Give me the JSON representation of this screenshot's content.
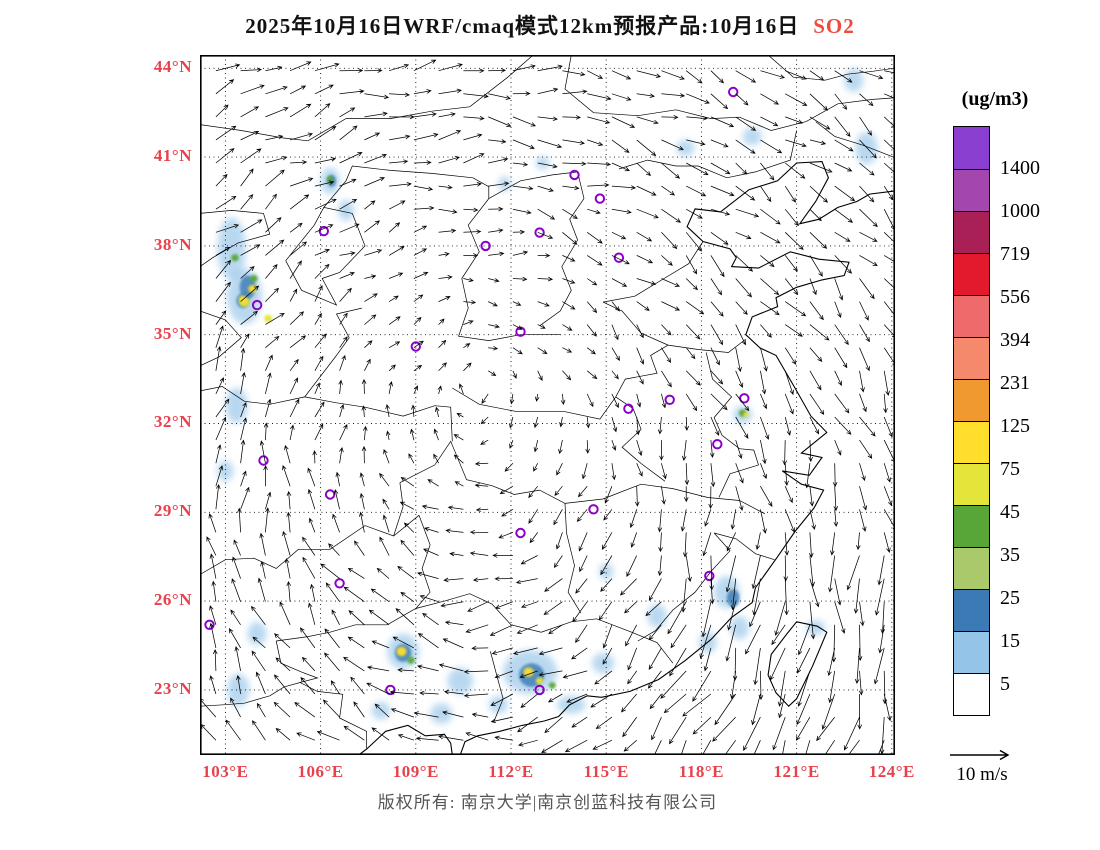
{
  "colors": {
    "axis_red": "#e8414b",
    "so2_red": "#ee4b3e",
    "title_black": "#111111",
    "copyright_gray": "#555555",
    "marker_purple": "#8b00c8",
    "boundary_black": "#000000"
  },
  "title": {
    "prefix": "2025年10月16日WRF/cmaq模式12km预报产品:10月16日",
    "species": "SO2"
  },
  "axes": {
    "lat_tick_labels": [
      "44°N",
      "41°N",
      "38°N",
      "35°N",
      "32°N",
      "29°N",
      "26°N",
      "23°N"
    ],
    "lat_tick_values": [
      44,
      41,
      38,
      35,
      32,
      29,
      26,
      23
    ],
    "lon_tick_labels": [
      "103°E",
      "106°E",
      "109°E",
      "112°E",
      "115°E",
      "118°E",
      "121°E",
      "124°E"
    ],
    "lon_tick_values": [
      103,
      106,
      109,
      112,
      115,
      118,
      121,
      124
    ]
  },
  "legend": {
    "units": "(ug/m3)",
    "boundary_labels": [
      "1400",
      "1000",
      "719",
      "556",
      "394",
      "231",
      "125",
      "75",
      "45",
      "35",
      "25",
      "15",
      "5"
    ],
    "colors_top_to_bottom": [
      "#8a3fd1",
      "#a347af",
      "#a82055",
      "#e31a2d",
      "#ef6a6a",
      "#f4896b",
      "#f0992e",
      "#ffdf2b",
      "#e3e53a",
      "#57a637",
      "#a9c96a",
      "#3b7ab5",
      "#94c4e8",
      "#ffffff"
    ]
  },
  "wind_scale": {
    "label": "10 m/s"
  },
  "footer": {
    "copyright": "版权所有: 南京大学|南京创蓝科技有限公司"
  },
  "chart_data": {
    "type": "heatmap",
    "title": "2025年10月16日WRF/cmaq模式12km预报产品:10月16日 SO2",
    "units": "ug/m3",
    "domain": {
      "lon_range": [
        102.2,
        124.1
      ],
      "lat_range": [
        20.8,
        44.45
      ]
    },
    "level_boundaries": [
      5,
      15,
      25,
      35,
      45,
      75,
      125,
      231,
      394,
      556,
      719,
      1000,
      1400
    ],
    "station_markers_lonlat": [
      [
        119.0,
        43.2
      ],
      [
        114.0,
        40.4
      ],
      [
        114.8,
        39.6
      ],
      [
        106.1,
        38.5
      ],
      [
        111.2,
        38.0
      ],
      [
        112.9,
        38.45
      ],
      [
        115.4,
        37.6
      ],
      [
        104.0,
        36.0
      ],
      [
        109.0,
        34.6
      ],
      [
        112.3,
        35.1
      ],
      [
        115.7,
        32.5
      ],
      [
        117.0,
        32.8
      ],
      [
        119.35,
        32.85
      ],
      [
        118.5,
        31.3
      ],
      [
        104.2,
        30.75
      ],
      [
        106.3,
        29.6
      ],
      [
        114.6,
        29.1
      ],
      [
        112.3,
        28.3
      ],
      [
        106.6,
        26.6
      ],
      [
        118.25,
        26.85
      ],
      [
        102.5,
        25.2
      ],
      [
        108.2,
        23.0
      ],
      [
        112.9,
        23.0
      ]
    ],
    "so2_patches": [
      {
        "lon": 103.6,
        "lat": 36.3,
        "rx": 0.55,
        "ry": 0.95,
        "level": 12
      },
      {
        "lon": 103.2,
        "lat": 37.9,
        "rx": 0.45,
        "ry": 1.05,
        "level": 12
      },
      {
        "lon": 103.35,
        "lat": 32.6,
        "rx": 0.35,
        "ry": 0.6,
        "level": 12
      },
      {
        "lon": 103.0,
        "lat": 30.4,
        "rx": 0.25,
        "ry": 0.35,
        "level": 12
      },
      {
        "lon": 104.0,
        "lat": 24.9,
        "rx": 0.3,
        "ry": 0.4,
        "level": 12
      },
      {
        "lon": 103.4,
        "lat": 23.0,
        "rx": 0.35,
        "ry": 0.55,
        "level": 12
      },
      {
        "lon": 106.3,
        "lat": 40.2,
        "rx": 0.3,
        "ry": 0.45,
        "level": 12
      },
      {
        "lon": 106.8,
        "lat": 39.2,
        "rx": 0.25,
        "ry": 0.35,
        "level": 12
      },
      {
        "lon": 111.8,
        "lat": 40.1,
        "rx": 0.2,
        "ry": 0.25,
        "level": 12
      },
      {
        "lon": 113.0,
        "lat": 40.8,
        "rx": 0.22,
        "ry": 0.22,
        "level": 12
      },
      {
        "lon": 117.5,
        "lat": 41.3,
        "rx": 0.28,
        "ry": 0.28,
        "level": 12
      },
      {
        "lon": 119.6,
        "lat": 41.7,
        "rx": 0.3,
        "ry": 0.3,
        "level": 12
      },
      {
        "lon": 123.2,
        "lat": 41.3,
        "rx": 0.35,
        "ry": 0.55,
        "level": 12
      },
      {
        "lon": 122.8,
        "lat": 43.6,
        "rx": 0.3,
        "ry": 0.4,
        "level": 12
      },
      {
        "lon": 119.3,
        "lat": 32.3,
        "rx": 0.3,
        "ry": 0.3,
        "level": 12
      },
      {
        "lon": 108.6,
        "lat": 24.3,
        "rx": 0.5,
        "ry": 0.6,
        "level": 12
      },
      {
        "lon": 110.4,
        "lat": 23.3,
        "rx": 0.4,
        "ry": 0.45,
        "level": 12
      },
      {
        "lon": 112.6,
        "lat": 23.6,
        "rx": 0.85,
        "ry": 0.75,
        "level": 12
      },
      {
        "lon": 114.9,
        "lat": 23.9,
        "rx": 0.35,
        "ry": 0.35,
        "level": 12
      },
      {
        "lon": 116.6,
        "lat": 25.5,
        "rx": 0.3,
        "ry": 0.4,
        "level": 12
      },
      {
        "lon": 118.8,
        "lat": 26.3,
        "rx": 0.4,
        "ry": 0.55,
        "level": 12
      },
      {
        "lon": 119.2,
        "lat": 25.1,
        "rx": 0.3,
        "ry": 0.4,
        "level": 12
      },
      {
        "lon": 118.2,
        "lat": 24.6,
        "rx": 0.28,
        "ry": 0.35,
        "level": 12
      },
      {
        "lon": 121.6,
        "lat": 25.1,
        "rx": 0.3,
        "ry": 0.25,
        "level": 12
      },
      {
        "lon": 113.9,
        "lat": 22.5,
        "rx": 0.45,
        "ry": 0.3,
        "level": 12
      },
      {
        "lon": 109.8,
        "lat": 22.2,
        "rx": 0.35,
        "ry": 0.35,
        "level": 12
      },
      {
        "lon": 111.6,
        "lat": 22.5,
        "rx": 0.3,
        "ry": 0.3,
        "level": 12
      },
      {
        "lon": 107.9,
        "lat": 22.3,
        "rx": 0.3,
        "ry": 0.3,
        "level": 12
      },
      {
        "lon": 115.0,
        "lat": 27.0,
        "rx": 0.22,
        "ry": 0.28,
        "level": 12
      },
      {
        "lon": 103.7,
        "lat": 36.6,
        "rx": 0.25,
        "ry": 0.4,
        "level": 11
      },
      {
        "lon": 103.55,
        "lat": 36.15,
        "rx": 0.2,
        "ry": 0.25,
        "level": 11
      },
      {
        "lon": 112.65,
        "lat": 23.5,
        "rx": 0.4,
        "ry": 0.4,
        "level": 11
      },
      {
        "lon": 108.6,
        "lat": 24.25,
        "rx": 0.26,
        "ry": 0.3,
        "level": 11
      },
      {
        "lon": 119.0,
        "lat": 26.1,
        "rx": 0.2,
        "ry": 0.3,
        "level": 11
      },
      {
        "lon": 106.35,
        "lat": 40.2,
        "rx": 0.14,
        "ry": 0.2,
        "level": 11
      },
      {
        "lon": 103.6,
        "lat": 36.1,
        "rx": 0.17,
        "ry": 0.17,
        "level": 8
      },
      {
        "lon": 103.55,
        "lat": 36.2,
        "rx": 0.12,
        "ry": 0.12,
        "level": 7
      },
      {
        "lon": 103.85,
        "lat": 36.55,
        "rx": 0.13,
        "ry": 0.13,
        "level": 7
      },
      {
        "lon": 103.9,
        "lat": 36.9,
        "rx": 0.12,
        "ry": 0.12,
        "level": 9
      },
      {
        "lon": 104.35,
        "lat": 35.55,
        "rx": 0.13,
        "ry": 0.13,
        "level": 8
      },
      {
        "lon": 103.3,
        "lat": 37.6,
        "rx": 0.12,
        "ry": 0.12,
        "level": 9
      },
      {
        "lon": 106.3,
        "lat": 40.25,
        "rx": 0.11,
        "ry": 0.11,
        "level": 9
      },
      {
        "lon": 108.55,
        "lat": 24.3,
        "rx": 0.16,
        "ry": 0.16,
        "level": 7
      },
      {
        "lon": 108.85,
        "lat": 24.0,
        "rx": 0.12,
        "ry": 0.12,
        "level": 9
      },
      {
        "lon": 112.55,
        "lat": 23.6,
        "rx": 0.16,
        "ry": 0.16,
        "level": 7
      },
      {
        "lon": 112.9,
        "lat": 23.3,
        "rx": 0.12,
        "ry": 0.12,
        "level": 8
      },
      {
        "lon": 113.3,
        "lat": 23.15,
        "rx": 0.11,
        "ry": 0.11,
        "level": 9
      },
      {
        "lon": 119.3,
        "lat": 32.35,
        "rx": 0.12,
        "ry": 0.12,
        "level": 9
      },
      {
        "lon": 119.4,
        "lat": 32.3,
        "rx": 0.08,
        "ry": 0.08,
        "level": 7
      }
    ],
    "wind": {
      "reference_speed_label": "10 m/s",
      "style": "arrows"
    }
  }
}
